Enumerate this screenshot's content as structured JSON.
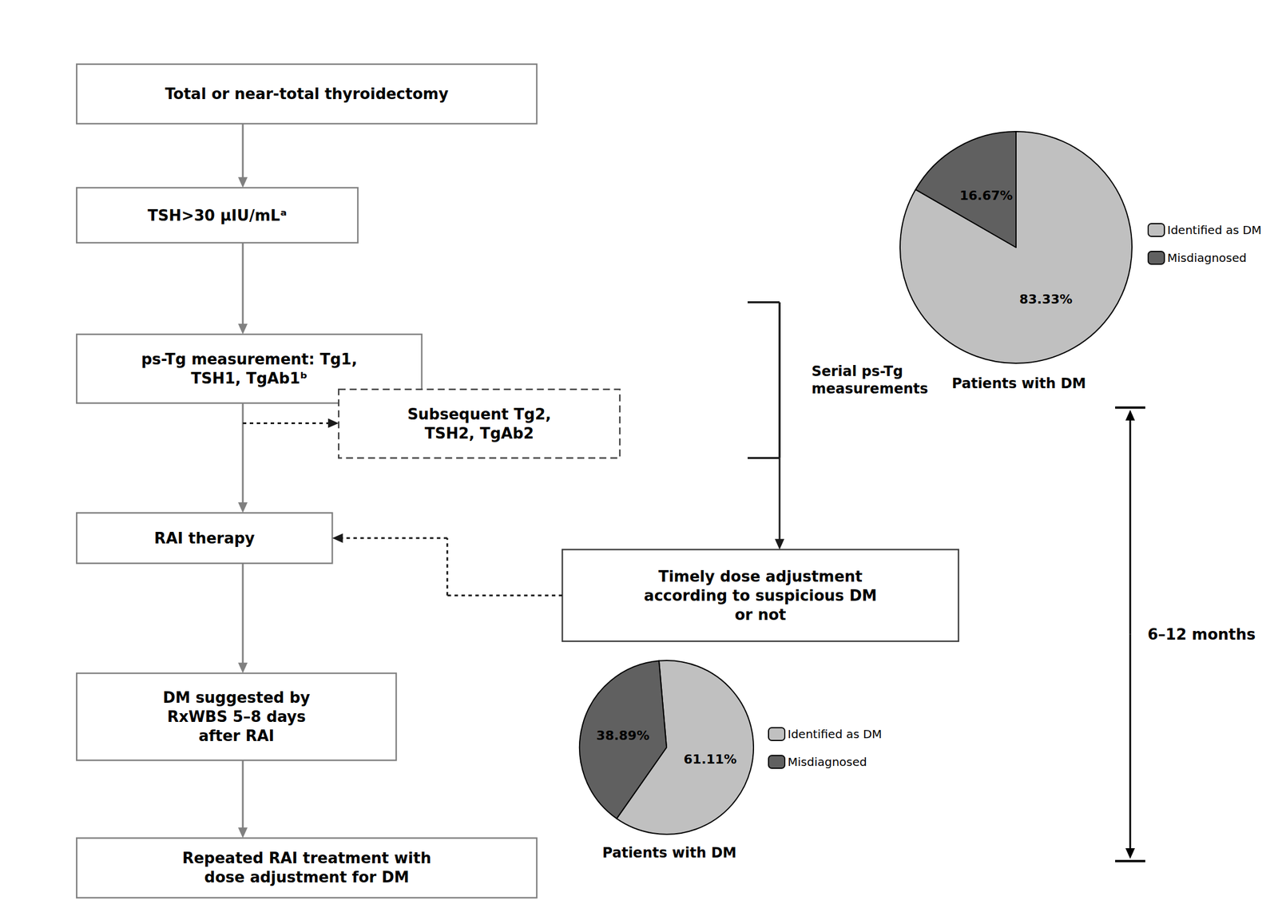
{
  "chart_data": [
    {
      "type": "pie",
      "title": "Patients with DM",
      "categories": [
        "Identified as DM",
        "Misdiagnosed"
      ],
      "values": [
        83.33,
        16.67
      ],
      "value_labels": [
        "83.33%",
        "16.67%"
      ],
      "colors": [
        "#c0c0c0",
        "#606060"
      ],
      "data_labels": true,
      "legend": "right"
    },
    {
      "type": "pie",
      "title": "Patients with DM",
      "categories": [
        "Identified as DM",
        "Misdiagnosed"
      ],
      "values": [
        61.11,
        38.89
      ],
      "value_labels": [
        "61.11%",
        "38.89%"
      ],
      "colors": [
        "#c0c0c0",
        "#606060"
      ],
      "data_labels": true,
      "legend": "right"
    },
    {
      "type": "flowchart",
      "annotations": [
        "Total or near-total thyroidectomy",
        "TSH>30 μIU/mLᵃ",
        "ps-Tg measurement: Tg1,\nTSH1, TgAb1ᵇ",
        "RAI therapy",
        "DM suggested by\nRxWBS 5–8 days\nafter RAI",
        "Repeated RAI treatment with\ndose adjustment for DM",
        "Subsequent Tg2,\nTSH2, TgAb2",
        "Timely dose adjustment\naccording to suspicious DM\nor not",
        "Serial ps-Tg\nmeasurements",
        "6–12 months"
      ]
    }
  ]
}
